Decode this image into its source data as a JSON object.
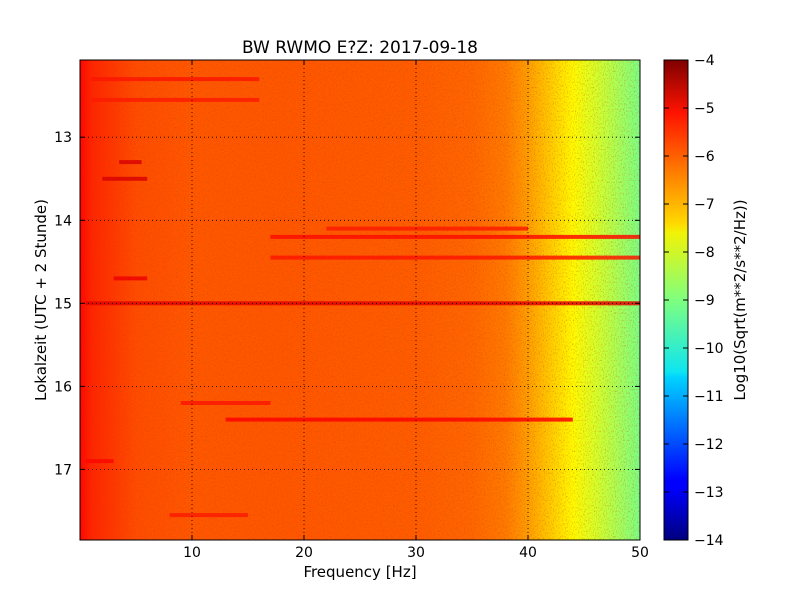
{
  "chart_data": {
    "type": "heatmap",
    "title": "BW RWMO E?Z: 2017-09-18",
    "xlabel": "Frequency [Hz]",
    "ylabel": "Lokalzeit (UTC + 2 Stunde)",
    "xlim": [
      0,
      50
    ],
    "ylim": [
      12.07,
      17.85
    ],
    "y_inverted": true,
    "x_ticks": [
      10,
      20,
      30,
      40,
      50
    ],
    "y_ticks": [
      13,
      14,
      15,
      16,
      17
    ],
    "grid": true,
    "grid_style": "dotted",
    "colorbar": {
      "label": "Log10(Sqrt(m**2/s**2/Hz))",
      "range": [
        -14,
        -4
      ],
      "ticks": [
        -4,
        -5,
        -6,
        -7,
        -8,
        -9,
        -10,
        -11,
        -12,
        -13,
        -14
      ],
      "colormap": "jet"
    },
    "background_profile": {
      "frequency_hz": [
        0,
        1,
        5,
        10,
        20,
        30,
        35,
        38,
        40,
        42,
        44,
        46,
        48,
        50
      ],
      "level": [
        -5.3,
        -5.6,
        -6.0,
        -6.1,
        -6.1,
        -6.15,
        -6.25,
        -6.45,
        -6.8,
        -7.25,
        -7.7,
        -8.15,
        -8.6,
        -9.05
      ]
    },
    "features": [
      {
        "time": 15.0,
        "f_start": 0.5,
        "f_end": 50,
        "level": -5.0
      },
      {
        "time": 16.4,
        "f_start": 13,
        "f_end": 44,
        "level": -5.25
      },
      {
        "time": 14.2,
        "f_start": 17,
        "f_end": 50,
        "level": -5.35
      },
      {
        "time": 14.45,
        "f_start": 17,
        "f_end": 50,
        "level": -5.45
      },
      {
        "time": 14.1,
        "f_start": 22,
        "f_end": 40,
        "level": -5.5
      },
      {
        "time": 12.3,
        "f_start": 1,
        "f_end": 16,
        "level": -5.45
      },
      {
        "time": 12.55,
        "f_start": 1,
        "f_end": 16,
        "level": -5.5
      },
      {
        "time": 13.5,
        "f_start": 2,
        "f_end": 6,
        "level": -4.9
      },
      {
        "time": 13.3,
        "f_start": 3.5,
        "f_end": 5.5,
        "level": -4.9
      },
      {
        "time": 14.7,
        "f_start": 3,
        "f_end": 6,
        "level": -5.1
      },
      {
        "time": 16.9,
        "f_start": 0.5,
        "f_end": 3,
        "level": -5.3
      },
      {
        "time": 17.55,
        "f_start": 8,
        "f_end": 15,
        "level": -5.5
      },
      {
        "time": 16.2,
        "f_start": 9,
        "f_end": 17,
        "level": -5.45
      }
    ]
  }
}
